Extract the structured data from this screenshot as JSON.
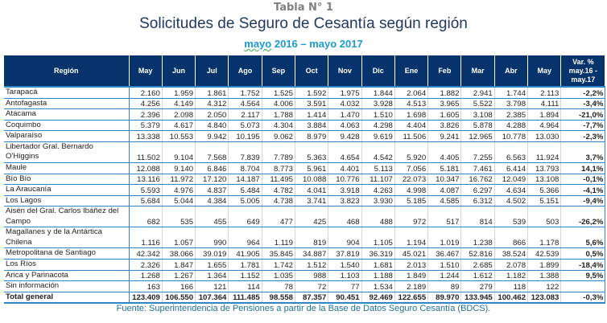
{
  "header": {
    "table_number": "Tabla N° 1",
    "title": "Solicitudes de Seguro de Cesantía según región",
    "subtitle_word": "mayo",
    "subtitle_rest": " 2016 – mayo 2017"
  },
  "table": {
    "columns": [
      "Región",
      "May",
      "Jun",
      "Jul",
      "Ago",
      "Sep",
      "Oct",
      "Nov",
      "Dic",
      "Ene",
      "Feb",
      "Mar",
      "Abr",
      "May",
      "Var. % may.16 - may.17"
    ],
    "rows": [
      [
        "Tarapacá",
        "2.160",
        "1.959",
        "1.861",
        "1.752",
        "1.525",
        "1.592",
        "1.975",
        "1.844",
        "2.064",
        "1.882",
        "2.941",
        "1.744",
        "2.113",
        "-2,2%"
      ],
      [
        "Antofagasta",
        "4.256",
        "4.149",
        "4.312",
        "4.564",
        "4.006",
        "3.591",
        "4.032",
        "3.928",
        "4.513",
        "3.965",
        "5.522",
        "3.798",
        "4.111",
        "-3,4%"
      ],
      [
        "Atacama",
        "2.396",
        "2.098",
        "2.050",
        "2.117",
        "1.788",
        "1.414",
        "1.470",
        "1.510",
        "1.698",
        "1.605",
        "3.108",
        "2.385",
        "1.894",
        "-21,0%"
      ],
      [
        "Coquimbo",
        "5.379",
        "4.617",
        "4.840",
        "5.073",
        "4.304",
        "3.884",
        "4.063",
        "4.298",
        "4.404",
        "3.826",
        "5.878",
        "4.288",
        "4.964",
        "-7,7%"
      ],
      [
        "Valparaíso",
        "13.338",
        "10.553",
        "9.942",
        "10.195",
        "9.062",
        "8.979",
        "9.428",
        "9.619",
        "11.506",
        "9.241",
        "12.965",
        "10.778",
        "13.030",
        "-2,3%"
      ],
      [
        "Libertador Gral. Bernardo O'Higgins",
        "11.502",
        "9.104",
        "7.568",
        "7.839",
        "7.789",
        "5.363",
        "4.654",
        "4.542",
        "5.920",
        "4.405",
        "7.255",
        "6.563",
        "11.924",
        "3,7%"
      ],
      [
        "Maule",
        "12.088",
        "9.140",
        "6.846",
        "8.704",
        "8.773",
        "5.961",
        "4.401",
        "5.113",
        "7.056",
        "5.181",
        "7.461",
        "6.414",
        "13.793",
        "14,1%"
      ],
      [
        "Bío Bío",
        "13.116",
        "11.972",
        "17.120",
        "14.187",
        "11.495",
        "10.088",
        "10.776",
        "11.107",
        "22.073",
        "10.347",
        "16.762",
        "12.049",
        "13.108",
        "-0,1%"
      ],
      [
        "La Araucanía",
        "5.593",
        "4.976",
        "4.837",
        "5.484",
        "4.782",
        "4.041",
        "3.918",
        "4.263",
        "4.998",
        "4.087",
        "6.297",
        "4.634",
        "5.366",
        "-4,1%"
      ],
      [
        "Los Lagos",
        "5.684",
        "5.044",
        "4.384",
        "5.005",
        "4.738",
        "3.741",
        "3.823",
        "3.930",
        "5.185",
        "4.585",
        "6.312",
        "4.502",
        "5.151",
        "-9,4%"
      ],
      [
        "Aisén del Gral. Carlos Ibáñez del Campo",
        "682",
        "535",
        "455",
        "649",
        "477",
        "425",
        "468",
        "488",
        "972",
        "517",
        "814",
        "539",
        "503",
        "-26,2%"
      ],
      [
        "Magallanes y de la Antártica Chilena",
        "1.116",
        "1.057",
        "990",
        "964",
        "1.119",
        "819",
        "904",
        "1.105",
        "1.194",
        "1.019",
        "1.238",
        "866",
        "1.178",
        "5,6%"
      ],
      [
        "Metropolitana de Santiago",
        "42.342",
        "38.066",
        "39.019",
        "41.905",
        "35.845",
        "34.887",
        "37.819",
        "36.319",
        "45.021",
        "36.467",
        "52.816",
        "38.524",
        "42.539",
        "0,5%"
      ],
      [
        "Los Ríos",
        "2.326",
        "1.847",
        "1.655",
        "1.781",
        "1.742",
        "1.512",
        "1.540",
        "1.681",
        "2.013",
        "1.510",
        "2.685",
        "2.078",
        "1.899",
        "-18,4%"
      ],
      [
        "Arica y Parinacota",
        "1.268",
        "1.267",
        "1.364",
        "1.152",
        "1.035",
        "988",
        "1.103",
        "1.188",
        "1.849",
        "1.244",
        "1.612",
        "1.182",
        "1.388",
        "9,5%"
      ],
      [
        "Sin información",
        "163",
        "166",
        "121",
        "114",
        "78",
        "72",
        "77",
        "1.534",
        "2.189",
        "89",
        "279",
        "118",
        "122",
        ""
      ]
    ],
    "total": [
      "Total general",
      "123.409",
      "106.550",
      "107.364",
      "111.485",
      "98.558",
      "87.357",
      "90.451",
      "92.469",
      "122.655",
      "89.970",
      "133.945",
      "100.462",
      "123.083",
      "-0,3%"
    ]
  },
  "footer": {
    "source": "Fuente: Superintendencia de Pensiones a partir de la Base de Datos Seguro Cesantía (BDCS)."
  },
  "colors": {
    "header_bg": "#06336b",
    "title": "#1f3864",
    "subtitle": "#1a9bd0",
    "row_border": "#2f86c6",
    "footer": "#1f6f95"
  }
}
